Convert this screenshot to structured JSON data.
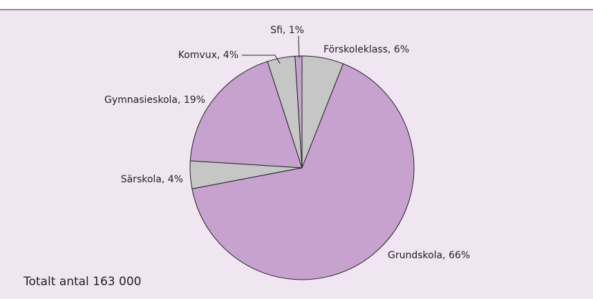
{
  "chart_data": {
    "type": "pie",
    "values": [
      6,
      66,
      4,
      19,
      4,
      1
    ],
    "value_labels": [
      "Förskoleklass, 6%",
      "Grundskola, 66%",
      "Särskola, 4%",
      "Gymnasieskola, 19%",
      "Komvux, 4%",
      "Sfi, 1%"
    ],
    "colors": [
      "#c6c6c6",
      "#c8a2cf",
      "#c6c6c6",
      "#c8a2cf",
      "#c6c6c6",
      "#c8a2cf"
    ],
    "annotation": "Totalt antal 163 000"
  }
}
